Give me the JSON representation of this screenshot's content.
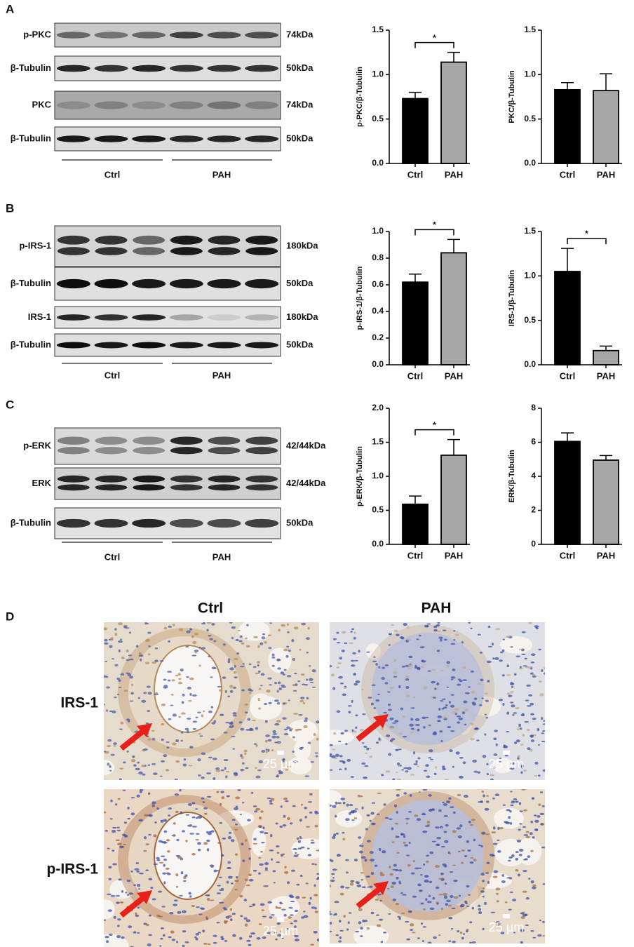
{
  "panels": [
    {
      "letter": "A",
      "blots": [
        {
          "label": "p-PKC",
          "weight": "74kDa"
        },
        {
          "label": "β-Tubulin",
          "weight": "50kDa"
        },
        {
          "label": "PKC",
          "weight": "74kDa"
        },
        {
          "label": "β-Tubulin",
          "weight": "50kDa"
        }
      ],
      "groups": [
        "Ctrl",
        "PAH"
      ]
    },
    {
      "letter": "B",
      "blots": [
        {
          "label": "p-IRS-1",
          "weight": "180kDa"
        },
        {
          "label": "β-Tubulin",
          "weight": "50kDa"
        },
        {
          "label": "IRS-1",
          "weight": "180kDa"
        },
        {
          "label": "β-Tubulin",
          "weight": "50kDa"
        }
      ],
      "groups": [
        "Ctrl",
        "PAH"
      ]
    },
    {
      "letter": "C",
      "blots": [
        {
          "label": "p-ERK",
          "weight": "42/44kDa"
        },
        {
          "label": "ERK",
          "weight": "42/44kDa"
        },
        {
          "label": "β-Tubulin",
          "weight": "50kDa"
        }
      ],
      "groups": [
        "Ctrl",
        "PAH"
      ]
    }
  ],
  "chart_data": [
    {
      "type": "bar",
      "y_label": "p-PKC/β-Tubulin",
      "categories": [
        "Ctrl",
        "PAH"
      ],
      "values": [
        0.73,
        1.14
      ],
      "errors": [
        0.07,
        0.11
      ],
      "colors": [
        "#000000",
        "#a6a6a6"
      ],
      "ylim": [
        0,
        1.5
      ],
      "yticks": [
        {
          "value": 0,
          "label": "0.0"
        },
        0.5,
        {
          "value": 1,
          "label": "1.0"
        },
        1.5
      ],
      "annotation": "*"
    },
    {
      "type": "bar",
      "y_label": "PKC/β-Tubulin",
      "categories": [
        "Ctrl",
        "PAH"
      ],
      "values": [
        0.83,
        0.82
      ],
      "errors": [
        0.08,
        0.19
      ],
      "colors": [
        "#000000",
        "#a6a6a6"
      ],
      "ylim": [
        0,
        1.5
      ],
      "yticks": [
        {
          "value": 0,
          "label": "0.0"
        },
        0.5,
        {
          "value": 1,
          "label": "1.0"
        },
        1.5
      ]
    },
    {
      "type": "bar",
      "y_label": "p-IRS-1/β-Tubulin",
      "categories": [
        "Ctrl",
        "PAH"
      ],
      "values": [
        0.62,
        0.84
      ],
      "errors": [
        0.06,
        0.1
      ],
      "colors": [
        "#000000",
        "#a6a6a6"
      ],
      "ylim": [
        0,
        1
      ],
      "yticks": [
        {
          "value": 0,
          "label": "0.0"
        },
        0.2,
        0.4,
        0.6,
        0.8,
        {
          "value": 1,
          "label": "1.0"
        }
      ],
      "annotation": "*"
    },
    {
      "type": "bar",
      "y_label": "IRS-1/β-Tubulin",
      "categories": [
        "Ctrl",
        "PAH"
      ],
      "values": [
        1.05,
        0.16
      ],
      "errors": [
        0.26,
        0.05
      ],
      "colors": [
        "#000000",
        "#a6a6a6"
      ],
      "ylim": [
        0,
        1.5
      ],
      "yticks": [
        {
          "value": 0,
          "label": "0.0"
        },
        0.5,
        {
          "value": 1,
          "label": "1.0"
        },
        1.5
      ],
      "annotation": "*"
    },
    {
      "type": "bar",
      "y_label": "p-ERK/β-Tubulin",
      "categories": [
        "Ctrl",
        "PAH"
      ],
      "values": [
        0.59,
        1.31
      ],
      "errors": [
        0.12,
        0.23
      ],
      "colors": [
        "#000000",
        "#a6a6a6"
      ],
      "ylim": [
        0,
        2
      ],
      "yticks": [
        {
          "value": 0,
          "label": "0.0"
        },
        0.5,
        {
          "value": 1,
          "label": "1.0"
        },
        1.5,
        {
          "value": 2,
          "label": "2.0"
        }
      ],
      "annotation": "*"
    },
    {
      "type": "bar",
      "y_label": "ERK/β-Tubulin",
      "categories": [
        "Ctrl",
        "PAH"
      ],
      "values": [
        6.05,
        4.95
      ],
      "errors": [
        0.5,
        0.27
      ],
      "colors": [
        "#000000",
        "#a6a6a6"
      ],
      "ylim": [
        0,
        8
      ],
      "yticks": [
        0,
        2,
        4,
        6,
        8
      ]
    }
  ],
  "histology": {
    "letter": "D",
    "columns": [
      "Ctrl",
      "PAH"
    ],
    "rows": [
      "IRS-1",
      "p-IRS-1"
    ],
    "scale_bar": "25 µm"
  }
}
